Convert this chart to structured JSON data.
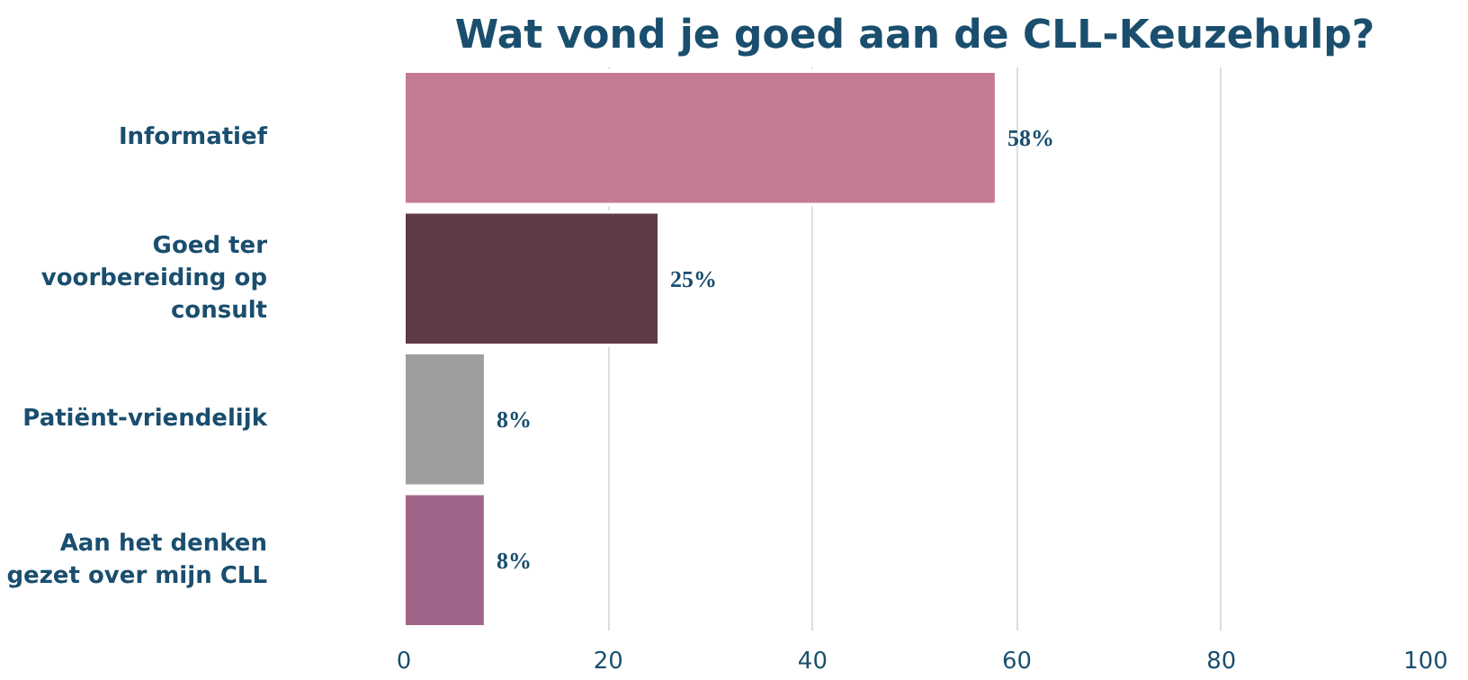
{
  "chart_data": {
    "type": "bar",
    "orientation": "horizontal",
    "title": "Wat vond je goed aan de CLL-Keuzehulp?",
    "categories": [
      "Informatief",
      "Goed ter voorbereiding op consult",
      "Patiënt-vriendelijk",
      "Aan het denken gezet over mijn CLL"
    ],
    "values": [
      58,
      25,
      8,
      8
    ],
    "colors": [
      "#c47a93",
      "#5e3a47",
      "#9e9e9e",
      "#a0668a"
    ],
    "value_labels": [
      "58%",
      "25%",
      "8%",
      "8%"
    ],
    "xlim": [
      0,
      100
    ],
    "xticks": [
      0,
      20,
      40,
      60,
      80,
      100
    ],
    "grid": "x"
  }
}
